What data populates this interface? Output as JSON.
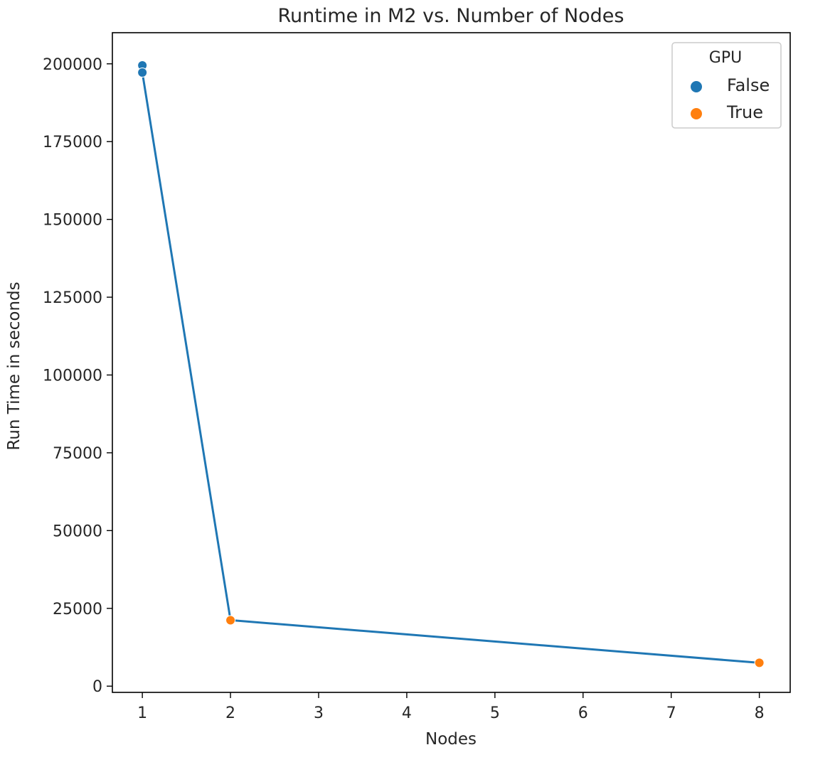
{
  "chart_data": {
    "type": "scatter",
    "title": "Runtime in M2 vs. Number of Nodes",
    "xlabel": "Nodes",
    "ylabel": "Run Time in seconds",
    "xlim": [
      0.66,
      8.35
    ],
    "ylim": [
      -2000,
      210000
    ],
    "xticks": [
      1,
      2,
      3,
      4,
      5,
      6,
      7,
      8
    ],
    "yticks": [
      0,
      25000,
      50000,
      75000,
      100000,
      125000,
      150000,
      175000,
      200000
    ],
    "grid": false,
    "legend": {
      "title": "GPU",
      "placement": "upper right",
      "entries": [
        {
          "label": "False",
          "color": "#1f77b4"
        },
        {
          "label": "True",
          "color": "#ff7f0e"
        }
      ]
    },
    "series": [
      {
        "name": "False",
        "color": "#1f77b4",
        "points": [
          {
            "x": 1,
            "y": 199500
          },
          {
            "x": 1,
            "y": 197200
          }
        ]
      },
      {
        "name": "True",
        "color": "#ff7f0e",
        "points": [
          {
            "x": 2,
            "y": 21200
          },
          {
            "x": 8,
            "y": 7500
          }
        ]
      }
    ],
    "line": {
      "color": "#1f77b4",
      "points": [
        {
          "x": 1,
          "y": 197200
        },
        {
          "x": 2,
          "y": 21200
        },
        {
          "x": 8,
          "y": 7500
        }
      ]
    }
  }
}
